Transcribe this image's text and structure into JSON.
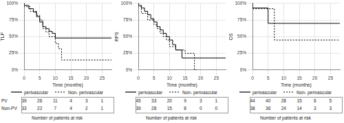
{
  "chart_data": [
    {
      "type": "line",
      "ylabel": "TLP",
      "xlabel": "Time (months)",
      "xlim": [
        0,
        28
      ],
      "xticks": [
        0,
        5,
        10,
        15,
        20,
        25
      ],
      "ylim": [
        0,
        100
      ],
      "yticks": [
        {
          "value": 0,
          "label": "0%"
        },
        {
          "value": 25,
          "label": "25%"
        },
        {
          "value": 50,
          "label": "50%"
        },
        {
          "value": 75,
          "label": "75%"
        },
        {
          "value": 100,
          "label": "100%"
        }
      ],
      "grid": true,
      "legend": "bottom",
      "series": [
        {
          "name": "perivascular",
          "color": "#000000",
          "line_style": "solid",
          "x": [
            0,
            1.5,
            3,
            4,
            5,
            6,
            7,
            8,
            9,
            10,
            11,
            28
          ],
          "values": [
            100,
            97,
            92,
            87,
            80,
            72,
            65,
            62,
            58,
            55,
            48,
            48
          ]
        },
        {
          "name": "Non- perivascular",
          "color": "#000000",
          "line_style": "dotted",
          "x": [
            0,
            2,
            4,
            5,
            6,
            7,
            8,
            10,
            11,
            12,
            14,
            28
          ],
          "values": [
            100,
            95,
            88,
            82,
            75,
            62,
            57,
            50,
            40,
            32,
            15,
            15
          ]
        }
      ],
      "risk_table": {
        "title": "Number of patients at risk",
        "x": [
          0,
          5,
          10,
          15,
          20,
          25
        ],
        "rows": [
          {
            "label": "PV",
            "values": [
              39,
              26,
              11,
              4,
              3,
              1
            ]
          },
          {
            "label": "Non-PV",
            "values": [
              33,
              22,
              7,
              4,
              2,
              1
            ]
          }
        ]
      }
    },
    {
      "type": "line",
      "ylabel": "RFS",
      "xlabel": "Time (months)",
      "xlim": [
        0,
        28
      ],
      "xticks": [
        0,
        5,
        10,
        15,
        20,
        25
      ],
      "ylim": [
        0,
        100
      ],
      "yticks": [
        {
          "value": 0,
          "label": "0%"
        },
        {
          "value": 25,
          "label": "25%"
        },
        {
          "value": 50,
          "label": "50%"
        },
        {
          "value": 75,
          "label": "75%"
        },
        {
          "value": 100,
          "label": "100%"
        }
      ],
      "grid": true,
      "legend": "bottom",
      "series": [
        {
          "name": "perivascular",
          "color": "#000000",
          "line_style": "solid",
          "x": [
            0,
            1,
            2,
            3,
            4,
            5,
            6,
            7,
            8,
            9,
            10,
            11,
            12,
            14,
            18,
            28
          ],
          "values": [
            100,
            97,
            93,
            88,
            83,
            77,
            72,
            65,
            60,
            55,
            50,
            45,
            38,
            30,
            18,
            18
          ]
        },
        {
          "name": "Non- perivascular",
          "color": "#000000",
          "line_style": "dotted",
          "x": [
            0,
            1,
            3,
            5,
            6,
            7,
            8,
            9,
            10,
            12,
            15,
            18,
            19
          ],
          "values": [
            100,
            95,
            85,
            75,
            68,
            62,
            55,
            50,
            45,
            35,
            30,
            25,
            0
          ]
        }
      ],
      "risk_table": {
        "title": "Number of patients at risk",
        "x": [
          0,
          5,
          10,
          15,
          20,
          25
        ],
        "rows": [
          {
            "values": [
              45,
              33,
              20,
              9,
              3,
              1
            ]
          },
          {
            "values": [
              39,
              28,
              15,
              8,
              0,
              0
            ]
          }
        ]
      }
    },
    {
      "type": "line",
      "ylabel": "OS",
      "xlabel": "Time (months)",
      "xlim": [
        0,
        28
      ],
      "xticks": [
        0,
        5,
        10,
        15,
        20,
        25
      ],
      "ylim": [
        0,
        100
      ],
      "yticks": [
        {
          "value": 0,
          "label": "0%"
        },
        {
          "value": 25,
          "label": "25%"
        },
        {
          "value": 50,
          "label": "50%"
        },
        {
          "value": 75,
          "label": "75%"
        },
        {
          "value": 100,
          "label": "100%"
        }
      ],
      "grid": true,
      "legend": "bottom",
      "series": [
        {
          "name": "perivascular",
          "color": "#000000",
          "line_style": "solid",
          "x": [
            0,
            5,
            20,
            28
          ],
          "values": [
            100,
            93,
            70,
            70
          ]
        },
        {
          "name": "Non- perivascular",
          "color": "#000000",
          "line_style": "dotted",
          "x": [
            0,
            7,
            20,
            28
          ],
          "values": [
            100,
            92,
            45,
            45
          ]
        }
      ],
      "risk_table": {
        "title": "Number of patients at risk",
        "x": [
          0,
          5,
          10,
          15,
          20,
          25
        ],
        "rows": [
          {
            "values": [
              44,
              40,
              28,
              15,
              6,
              5
            ]
          },
          {
            "values": [
              38,
              36,
              24,
              14,
              3,
              3
            ]
          }
        ]
      }
    }
  ]
}
